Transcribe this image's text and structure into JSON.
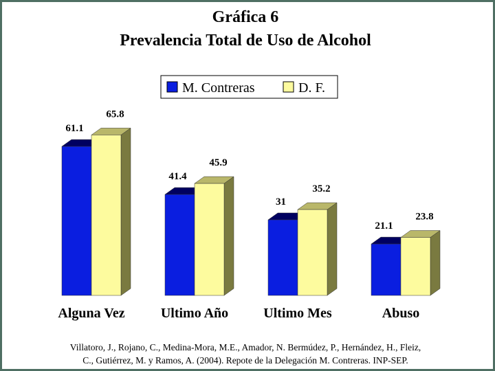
{
  "title_line1": "Gráfica 6",
  "title_line2": "Prevalencia Total de Uso de Alcohol",
  "source_line1": "Villatoro, J., Rojano, C., Medina-Mora, M.E., Amador, N. Bermúdez, P., Hernández, H., Fleiz,",
  "source_line2": "C., Gutiérrez, M. y Ramos, A. (2004). Repote de la Delegación M. Contreras. INP-SEP.",
  "chart_data": {
    "type": "bar",
    "title": "Gráfica 6 Prevalencia Total de Uso de Alcohol",
    "categories": [
      "Alguna Vez",
      "Ultimo Año",
      "Ultimo Mes",
      "Abuso"
    ],
    "series": [
      {
        "name": "M. Contreras",
        "values": [
          61.1,
          41.4,
          31,
          21.1
        ],
        "labels": [
          "61.1",
          "41.4",
          "31",
          "21.1"
        ],
        "color": "#0a1ee0"
      },
      {
        "name": "D. F.",
        "values": [
          65.8,
          45.9,
          35.2,
          23.8
        ],
        "labels": [
          "65.8",
          "45.9",
          "35.2",
          "23.8"
        ],
        "color": "#fdfb9e"
      }
    ],
    "ylim": [
      0,
      70
    ],
    "grid": false,
    "legend": "top-center"
  }
}
